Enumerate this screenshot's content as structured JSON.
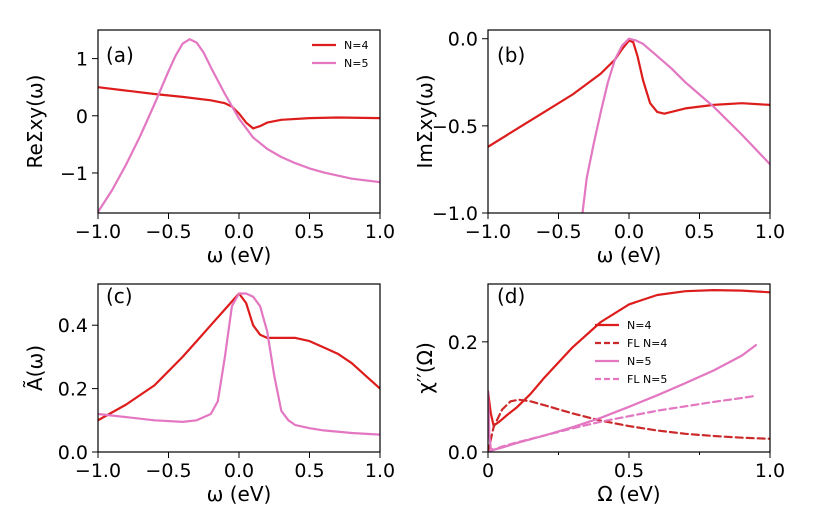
{
  "colors": {
    "n4": "#dd1c1c",
    "n5": "#e377c2",
    "fl_n4": "#cc2a2a",
    "fl_n5": "#e377c2"
  },
  "chart_data": [
    {
      "id": "a",
      "type": "line",
      "panel_label": "(a)",
      "xlabel": "ω (eV)",
      "ylabel": "ReΣxy(ω)",
      "xlim": [
        -1.0,
        1.0
      ],
      "ylim": [
        -1.7,
        1.5
      ],
      "xticks": [
        -1.0,
        -0.5,
        0.0,
        0.5,
        1.0
      ],
      "xtick_labels": [
        "−1.0",
        "−0.5",
        "0.0",
        "0.5",
        "1.0"
      ],
      "yticks": [
        -1,
        0,
        1
      ],
      "ytick_labels": [
        "−1",
        "0",
        "1"
      ],
      "legend": {
        "position": "top-right",
        "entries": [
          {
            "label": "N=4",
            "color": "n4",
            "dash": false
          },
          {
            "label": "N=5",
            "color": "n5",
            "dash": false
          }
        ]
      },
      "series": [
        {
          "name": "N=4",
          "color": "n4",
          "dash": false,
          "x": [
            -1.0,
            -0.8,
            -0.6,
            -0.4,
            -0.2,
            -0.1,
            -0.05,
            0.0,
            0.05,
            0.1,
            0.15,
            0.2,
            0.3,
            0.5,
            0.7,
            1.0
          ],
          "y": [
            0.5,
            0.44,
            0.38,
            0.33,
            0.27,
            0.22,
            0.16,
            0.04,
            -0.12,
            -0.22,
            -0.18,
            -0.12,
            -0.07,
            -0.04,
            -0.03,
            -0.04
          ]
        },
        {
          "name": "N=5",
          "color": "n5",
          "dash": false,
          "x": [
            -1.0,
            -0.9,
            -0.8,
            -0.7,
            -0.6,
            -0.5,
            -0.45,
            -0.4,
            -0.35,
            -0.3,
            -0.25,
            -0.2,
            -0.1,
            0.0,
            0.1,
            0.2,
            0.3,
            0.4,
            0.5,
            0.6,
            0.8,
            1.0
          ],
          "y": [
            -1.68,
            -1.3,
            -0.85,
            -0.35,
            0.2,
            0.78,
            1.05,
            1.26,
            1.34,
            1.28,
            1.1,
            0.85,
            0.38,
            -0.05,
            -0.38,
            -0.58,
            -0.72,
            -0.83,
            -0.92,
            -0.99,
            -1.1,
            -1.16
          ]
        }
      ]
    },
    {
      "id": "b",
      "type": "line",
      "panel_label": "(b)",
      "xlabel": "ω (eV)",
      "ylabel": "ImΣxy(ω)",
      "xlim": [
        -1.0,
        1.0
      ],
      "ylim": [
        -1.0,
        0.05
      ],
      "xticks": [
        -1.0,
        -0.5,
        0.0,
        0.5,
        1.0
      ],
      "xtick_labels": [
        "−1.0",
        "−0.5",
        "0.0",
        "0.5",
        "1.0"
      ],
      "yticks": [
        -1.0,
        -0.5,
        0.0
      ],
      "ytick_labels": [
        "−1.0",
        "−0.5",
        "0.0"
      ],
      "series": [
        {
          "name": "N=4",
          "color": "n4",
          "dash": false,
          "x": [
            -1.0,
            -0.8,
            -0.6,
            -0.4,
            -0.2,
            -0.1,
            -0.05,
            0.0,
            0.03,
            0.06,
            0.1,
            0.15,
            0.2,
            0.25,
            0.3,
            0.4,
            0.6,
            0.8,
            1.0
          ],
          "y": [
            -0.62,
            -0.52,
            -0.42,
            -0.32,
            -0.2,
            -0.12,
            -0.06,
            -0.01,
            -0.02,
            -0.1,
            -0.24,
            -0.37,
            -0.42,
            -0.43,
            -0.42,
            -0.4,
            -0.38,
            -0.37,
            -0.38
          ]
        },
        {
          "name": "N=5",
          "color": "n5",
          "dash": false,
          "x": [
            -0.33,
            -0.3,
            -0.25,
            -0.2,
            -0.15,
            -0.1,
            -0.05,
            0.0,
            0.05,
            0.1,
            0.2,
            0.3,
            0.4,
            0.5,
            0.6,
            0.8,
            1.0
          ],
          "y": [
            -1.0,
            -0.8,
            -0.6,
            -0.42,
            -0.25,
            -0.12,
            -0.04,
            0.0,
            -0.01,
            -0.03,
            -0.1,
            -0.17,
            -0.25,
            -0.32,
            -0.39,
            -0.55,
            -0.72
          ]
        }
      ]
    },
    {
      "id": "c",
      "type": "line",
      "panel_label": "(c)",
      "xlabel": "ω (eV)",
      "ylabel": "Ã(ω)",
      "xlim": [
        -1.0,
        1.0
      ],
      "ylim": [
        0.0,
        0.53
      ],
      "xticks": [
        -1.0,
        -0.5,
        0.0,
        0.5,
        1.0
      ],
      "xtick_labels": [
        "−1.0",
        "−0.5",
        "0.0",
        "0.5",
        "1.0"
      ],
      "yticks": [
        0.0,
        0.2,
        0.4
      ],
      "ytick_labels": [
        "0.0",
        "0.2",
        "0.4"
      ],
      "series": [
        {
          "name": "N=4",
          "color": "n4",
          "dash": false,
          "x": [
            -1.0,
            -0.8,
            -0.6,
            -0.4,
            -0.3,
            -0.2,
            -0.1,
            0.0,
            0.05,
            0.1,
            0.15,
            0.2,
            0.3,
            0.4,
            0.5,
            0.6,
            0.7,
            0.8,
            0.9,
            1.0
          ],
          "y": [
            0.1,
            0.15,
            0.21,
            0.3,
            0.35,
            0.4,
            0.45,
            0.5,
            0.47,
            0.4,
            0.37,
            0.36,
            0.36,
            0.36,
            0.35,
            0.33,
            0.31,
            0.28,
            0.24,
            0.2
          ]
        },
        {
          "name": "N=5",
          "color": "n5",
          "dash": false,
          "x": [
            -1.0,
            -0.8,
            -0.6,
            -0.4,
            -0.3,
            -0.2,
            -0.15,
            -0.1,
            -0.05,
            0.0,
            0.05,
            0.1,
            0.15,
            0.2,
            0.25,
            0.3,
            0.35,
            0.4,
            0.5,
            0.6,
            0.8,
            1.0
          ],
          "y": [
            0.12,
            0.11,
            0.1,
            0.095,
            0.1,
            0.12,
            0.16,
            0.3,
            0.46,
            0.5,
            0.5,
            0.49,
            0.46,
            0.38,
            0.24,
            0.13,
            0.1,
            0.085,
            0.075,
            0.068,
            0.06,
            0.055
          ]
        }
      ]
    },
    {
      "id": "d",
      "type": "line",
      "panel_label": "(d)",
      "xlabel": "Ω (eV)",
      "ylabel": "χ′′(Ω)",
      "xlim": [
        0.0,
        1.0
      ],
      "ylim": [
        0.0,
        0.305
      ],
      "xticks": [
        0.0,
        0.5,
        1.0
      ],
      "xtick_labels": [
        "0",
        "0.5",
        "1.0"
      ],
      "minor_xticks": [
        0.25,
        0.75
      ],
      "yticks": [
        0.0,
        0.2
      ],
      "ytick_labels": [
        "0.0",
        "0.2"
      ],
      "legend": {
        "position": "center-right",
        "entries": [
          {
            "label": "N=4",
            "color": "n4",
            "dash": false
          },
          {
            "label": "FL N=4",
            "color": "fl_n4",
            "dash": true
          },
          {
            "label": "N=5",
            "color": "n5",
            "dash": false
          },
          {
            "label": "FL N=5",
            "color": "fl_n5",
            "dash": true
          }
        ]
      },
      "series": [
        {
          "name": "N=4",
          "color": "n4",
          "dash": false,
          "x": [
            0.0,
            0.01,
            0.02,
            0.04,
            0.07,
            0.1,
            0.15,
            0.2,
            0.3,
            0.4,
            0.5,
            0.6,
            0.7,
            0.8,
            0.9,
            1.0
          ],
          "y": [
            0.11,
            0.07,
            0.048,
            0.055,
            0.068,
            0.08,
            0.105,
            0.135,
            0.19,
            0.236,
            0.268,
            0.285,
            0.292,
            0.294,
            0.293,
            0.29
          ]
        },
        {
          "name": "FL N=4",
          "color": "fl_n4",
          "dash": true,
          "x": [
            0.0,
            0.02,
            0.05,
            0.08,
            0.11,
            0.15,
            0.2,
            0.3,
            0.4,
            0.5,
            0.6,
            0.7,
            0.8,
            0.9,
            1.0
          ],
          "y": [
            0.0,
            0.045,
            0.077,
            0.092,
            0.095,
            0.092,
            0.085,
            0.07,
            0.057,
            0.047,
            0.039,
            0.033,
            0.029,
            0.026,
            0.024
          ]
        },
        {
          "name": "N=5",
          "color": "n5",
          "dash": false,
          "x": [
            0.0,
            0.005,
            0.01,
            0.02,
            0.05,
            0.1,
            0.2,
            0.3,
            0.4,
            0.5,
            0.6,
            0.7,
            0.8,
            0.9,
            0.95
          ],
          "y": [
            0.11,
            0.03,
            0.006,
            0.004,
            0.008,
            0.016,
            0.03,
            0.045,
            0.062,
            0.082,
            0.103,
            0.125,
            0.148,
            0.175,
            0.194
          ]
        },
        {
          "name": "FL N=5",
          "color": "fl_n5",
          "dash": true,
          "x": [
            0.0,
            0.05,
            0.1,
            0.2,
            0.3,
            0.4,
            0.5,
            0.6,
            0.7,
            0.8,
            0.9,
            0.95
          ],
          "y": [
            0.0,
            0.01,
            0.017,
            0.03,
            0.043,
            0.055,
            0.065,
            0.075,
            0.083,
            0.091,
            0.098,
            0.102
          ]
        }
      ]
    }
  ]
}
